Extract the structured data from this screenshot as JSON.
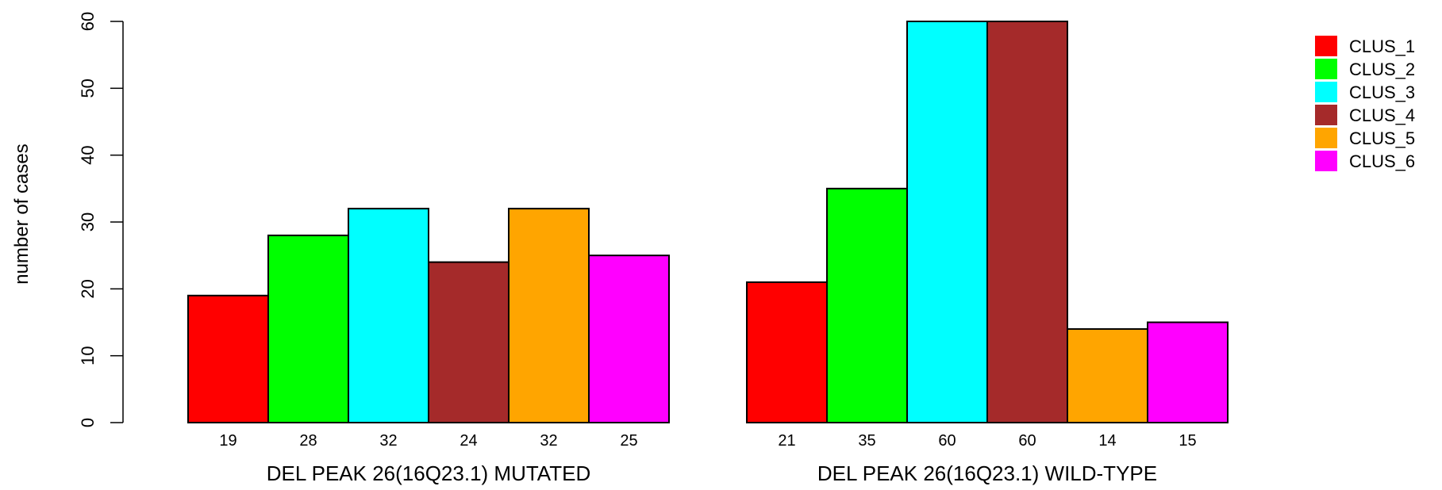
{
  "chart_data": {
    "type": "bar",
    "ylabel": "number of cases",
    "ylim": [
      0,
      60
    ],
    "yticks": [
      0,
      10,
      20,
      30,
      40,
      50,
      60
    ],
    "legend_position": "top-right",
    "series": [
      {
        "name": "CLUS_1",
        "color": "#ff0000"
      },
      {
        "name": "CLUS_2",
        "color": "#00ff00"
      },
      {
        "name": "CLUS_3",
        "color": "#00ffff"
      },
      {
        "name": "CLUS_4",
        "color": "#a52a2a"
      },
      {
        "name": "CLUS_5",
        "color": "#ffa500"
      },
      {
        "name": "CLUS_6",
        "color": "#ff00ff"
      }
    ],
    "groups": [
      {
        "label": "DEL PEAK 26(16Q23.1) MUTATED",
        "values": [
          19,
          28,
          32,
          24,
          32,
          25
        ]
      },
      {
        "label": "DEL PEAK 26(16Q23.1) WILD-TYPE",
        "values": [
          21,
          35,
          60,
          60,
          14,
          15
        ]
      }
    ]
  }
}
